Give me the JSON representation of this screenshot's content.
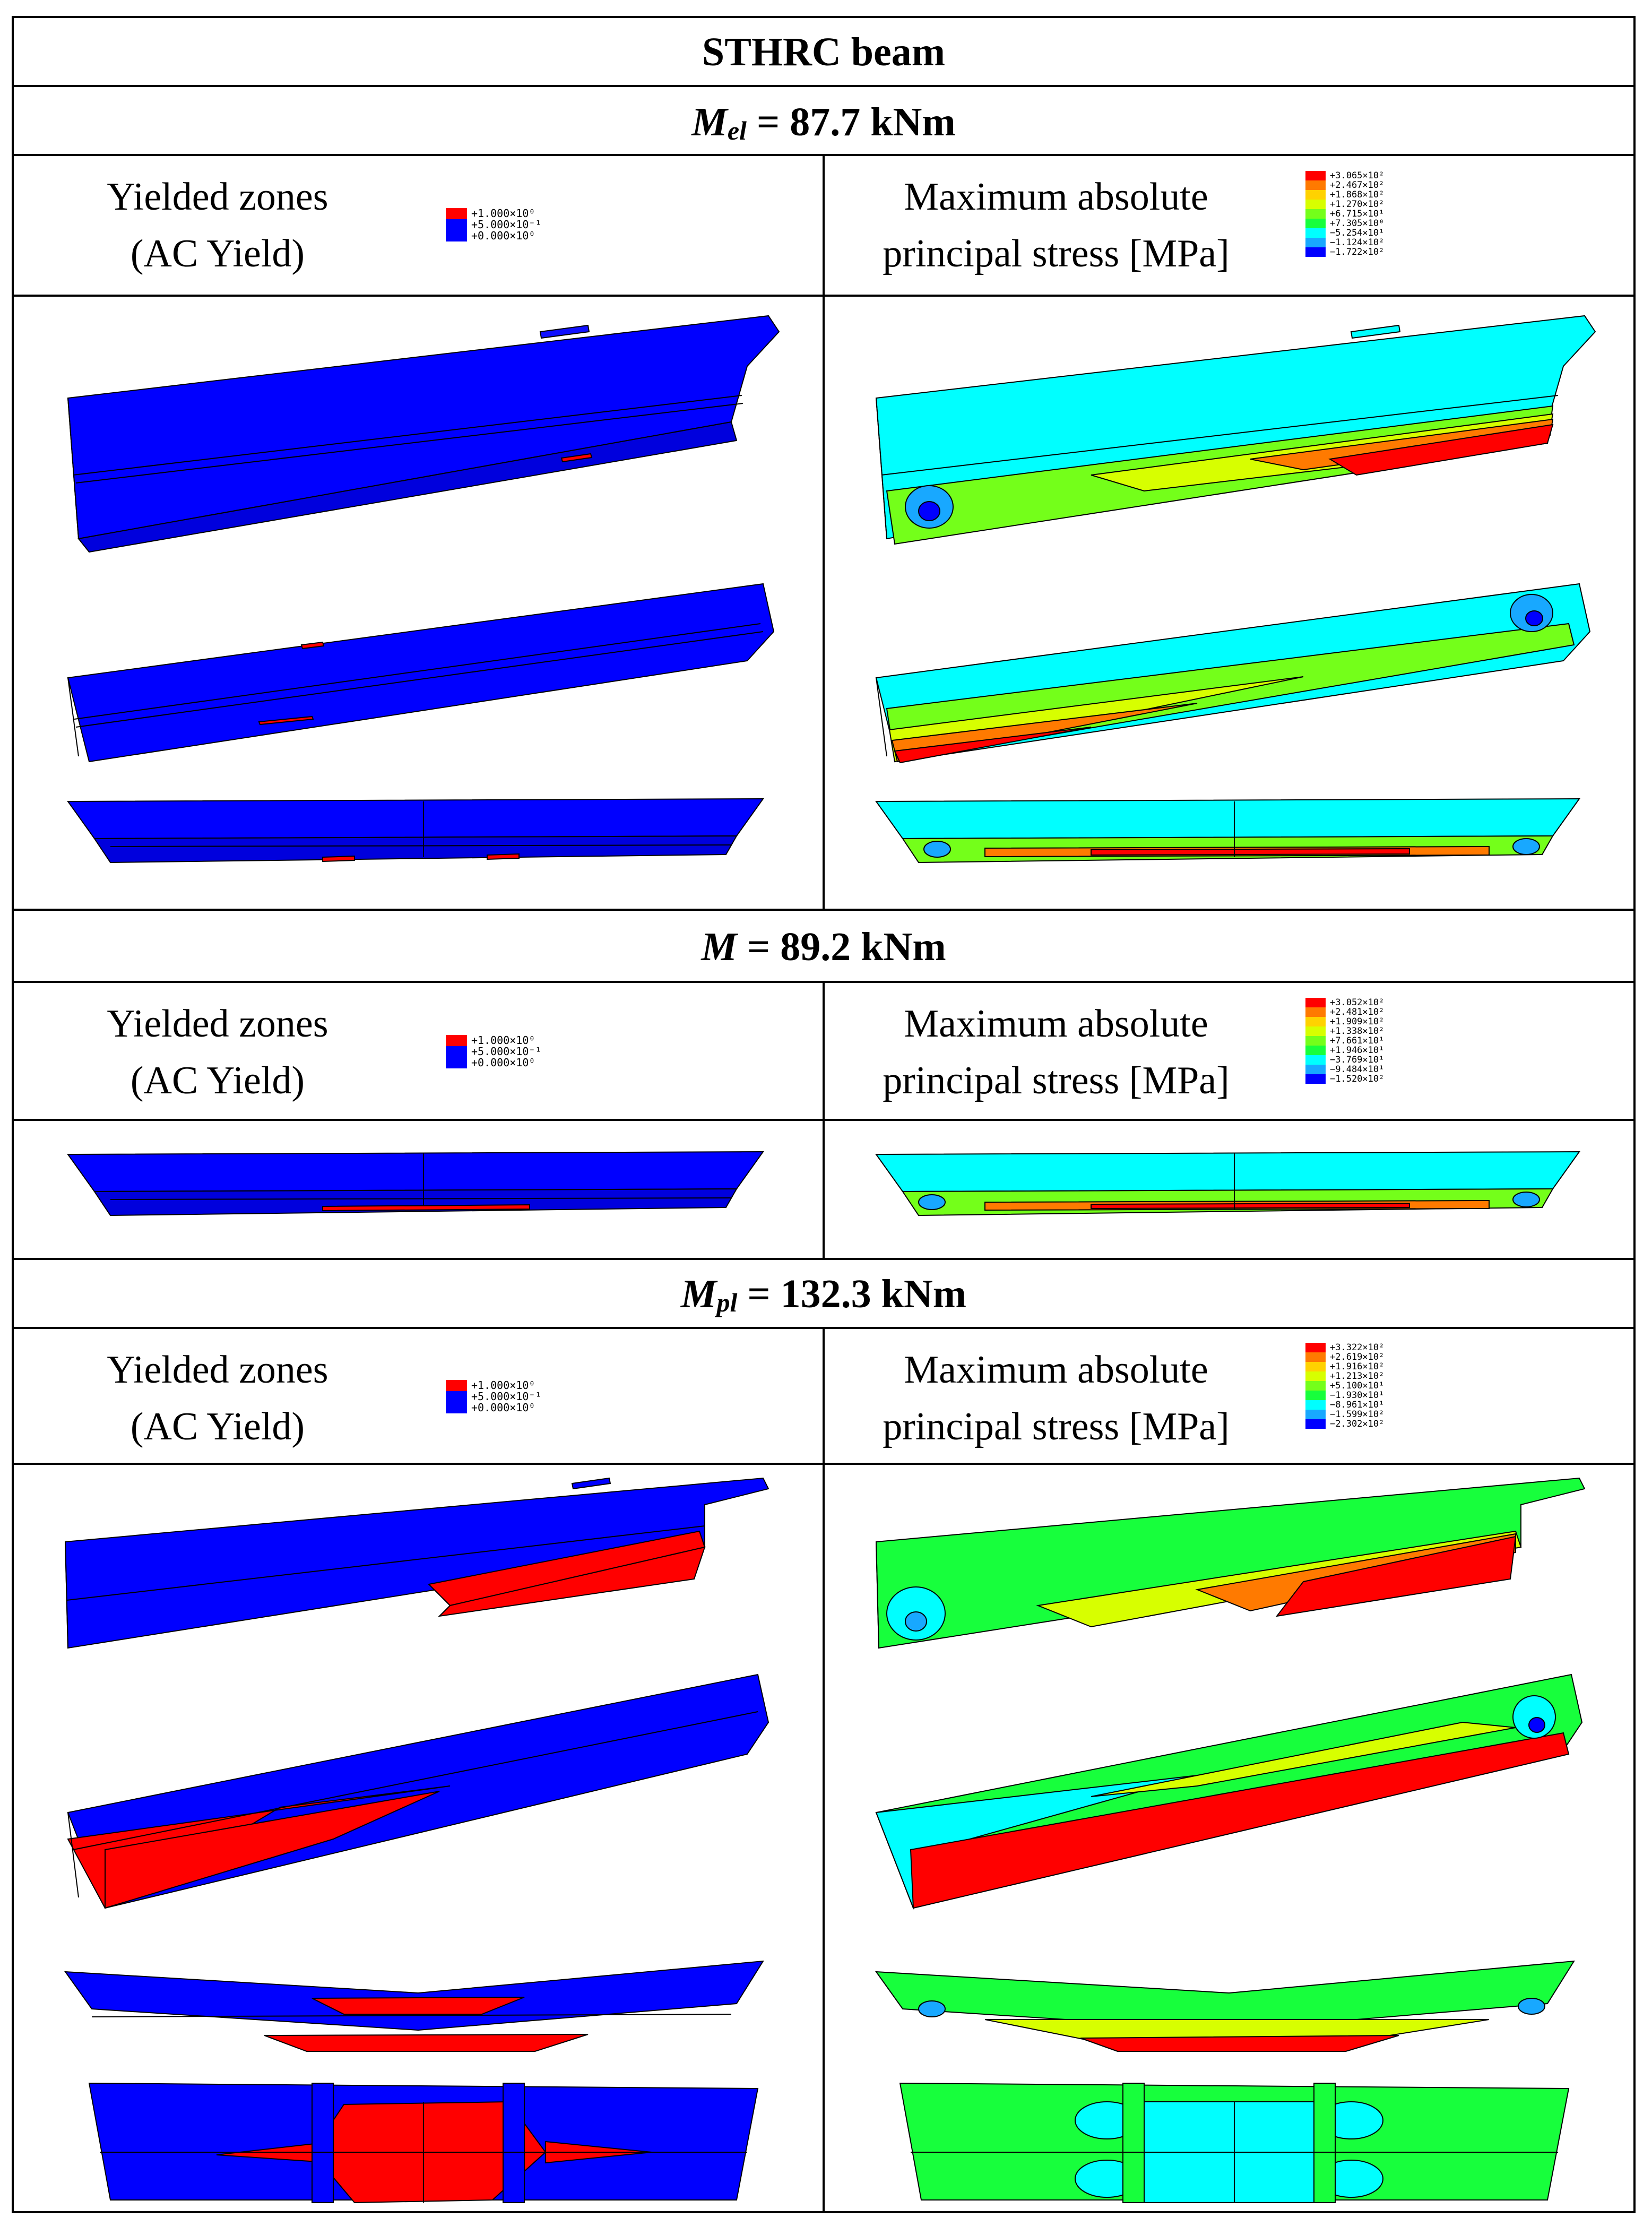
{
  "table": {
    "title": "STHRC beam",
    "sections": [
      {
        "symbol": "M",
        "sub": "el",
        "value": " = 87.7 kNm"
      },
      {
        "symbol": "M",
        "sub": "",
        "value": " = 89.2 kNm"
      },
      {
        "symbol": "M",
        "sub": "pl",
        "value": " = 132.3 kNm"
      }
    ],
    "yield_label": {
      "line1": "Yielded zones",
      "line2": "(AC Yield)"
    },
    "stress_label": {
      "line1": "Maximum absolute",
      "line2": "principal stress [MPa]"
    },
    "yield_legend": [
      "+1.000×10⁰",
      "+5.000×10⁻¹",
      "+0.000×10⁰"
    ],
    "stress_legends": [
      [
        "+3.065×10²",
        "+2.467×10²",
        "+1.868×10²",
        "+1.270×10²",
        "+6.715×10¹",
        "+7.305×10⁰",
        "−5.254×10¹",
        "−1.124×10²",
        "−1.722×10²"
      ],
      [
        "+3.052×10²",
        "+2.481×10²",
        "+1.909×10²",
        "+1.338×10²",
        "+7.661×10¹",
        "+1.946×10¹",
        "−3.769×10¹",
        "−9.484×10¹",
        "−1.520×10²"
      ],
      [
        "+3.322×10²",
        "+2.619×10²",
        "+1.916×10²",
        "+1.213×10²",
        "+5.100×10¹",
        "−1.930×10¹",
        "−8.961×10¹",
        "−1.599×10²",
        "−2.302×10²"
      ]
    ]
  },
  "colors": {
    "yield_high": "#ff0000",
    "yield_low": "#0000ff",
    "stress_scale": [
      "#ff0000",
      "#ff7a00",
      "#ffd200",
      "#d7ff00",
      "#74ff1a",
      "#17ff3c",
      "#00ffff",
      "#18a8ff",
      "#0000ff"
    ]
  }
}
